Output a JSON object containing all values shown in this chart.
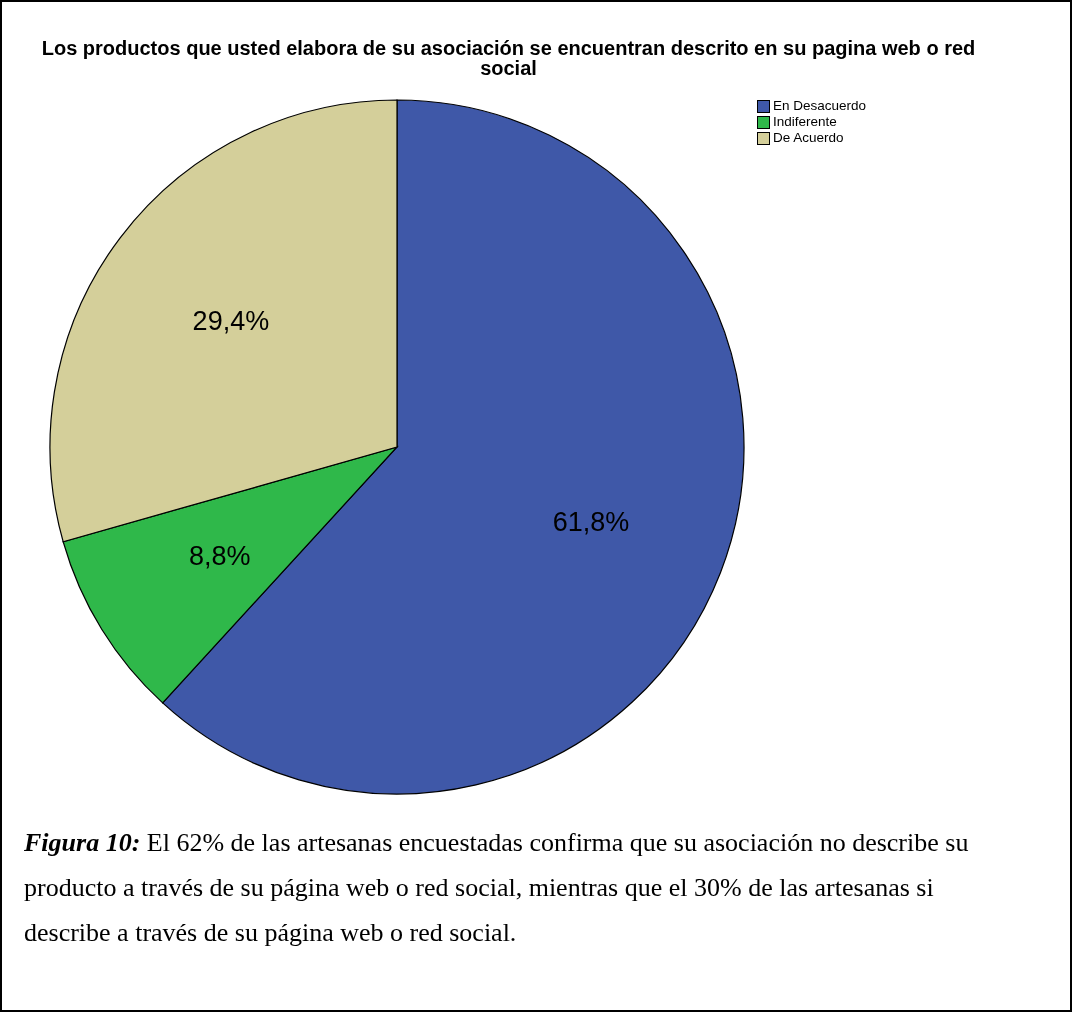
{
  "chart_data": {
    "type": "pie",
    "title": "Los productos que usted elabora de su asociación se encuentran descrito en su pagina web o red social",
    "categories": [
      "En Desacuerdo",
      "Indiferente",
      "De Acuerdo"
    ],
    "values": [
      61.8,
      8.8,
      29.4
    ],
    "value_labels": [
      "61,8%",
      "8,8%",
      "29,4%"
    ],
    "colors": [
      "#3f58a8",
      "#2fb84a",
      "#d4cf9a"
    ],
    "legend": "top right",
    "annotations": [
      "Figura 10: El 62% de las artesanas encuestadas confirma que su asociación no describe su producto a través de su página web o red social, mientras que el 30% de las artesanas si describe a través de su página web o red social."
    ]
  }
}
